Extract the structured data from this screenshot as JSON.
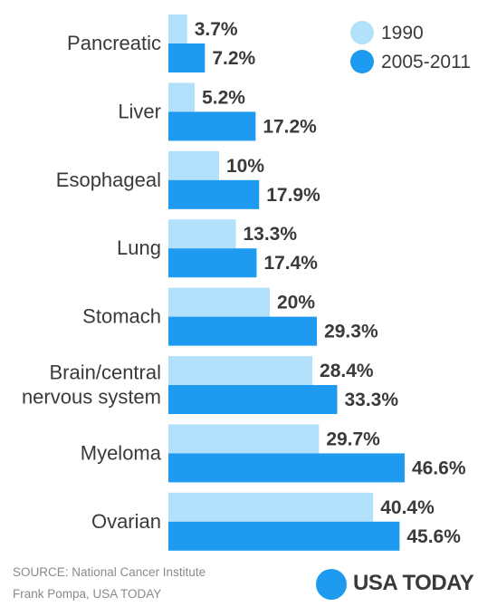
{
  "chart_data": {
    "type": "bar",
    "orientation": "horizontal",
    "categories": [
      "Pancreatic",
      "Liver",
      "Esophageal",
      "Lung",
      "Stomach",
      "Brain/central\nnervous system",
      "Myeloma",
      "Ovarian"
    ],
    "series": [
      {
        "name": "1990",
        "values": [
          3.7,
          5.2,
          10,
          13.3,
          20,
          28.4,
          29.7,
          40.4
        ],
        "labels": [
          "3.7%",
          "5.2%",
          "10%",
          "13.3%",
          "20%",
          "28.4%",
          "29.7%",
          "40.4%"
        ],
        "color": "#b3e0fb"
      },
      {
        "name": "2005-2011",
        "values": [
          7.2,
          17.2,
          17.9,
          17.4,
          29.3,
          33.3,
          46.6,
          45.6
        ],
        "labels": [
          "7.2%",
          "17.2%",
          "17.9%",
          "17.4%",
          "29.3%",
          "33.3%",
          "46.6%",
          "45.6%"
        ],
        "color": "#1e9bf0"
      }
    ],
    "xlim": [
      0,
      50
    ],
    "legend_position": "top-right",
    "grid": false
  },
  "footer": {
    "source": "SOURCE: National Cancer Institute",
    "credit": "Frank Pompa, USA TODAY",
    "brand": "USA TODAY",
    "brand_color": "#1e9bf0"
  }
}
